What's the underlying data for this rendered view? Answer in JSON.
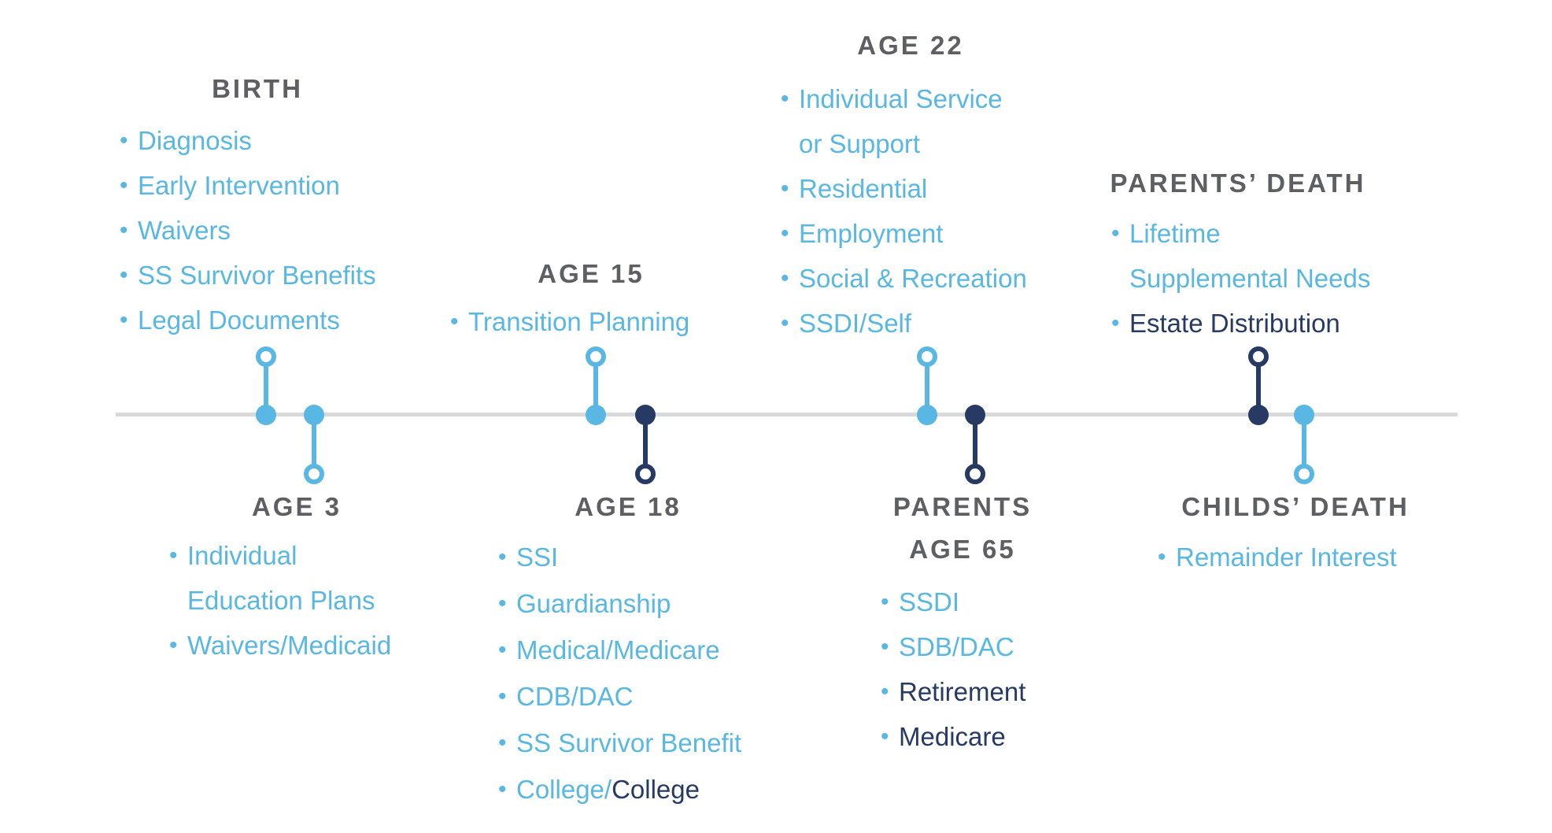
{
  "page": {
    "background": "#ffffff"
  },
  "colors": {
    "blue": "#59B7E3",
    "navy": "#263A64",
    "heading_gray": "#5D5F62",
    "axis_gray": "#D8D9DA"
  },
  "icons": {
    "list_bullet": "•"
  },
  "timeline": {
    "axis_name": "life-stages-timeline",
    "events": [
      {
        "id": "birth",
        "title_lines": [
          "BIRTH"
        ],
        "side": "above",
        "marker_color": "blue",
        "items": [
          {
            "bullet": true,
            "segments": [
              {
                "text": "Diagnosis",
                "color": "blue"
              }
            ]
          },
          {
            "bullet": true,
            "segments": [
              {
                "text": "Early Intervention",
                "color": "blue"
              }
            ]
          },
          {
            "bullet": true,
            "segments": [
              {
                "text": "Waivers",
                "color": "blue"
              }
            ]
          },
          {
            "bullet": true,
            "segments": [
              {
                "text": "SS Survivor Benefits",
                "color": "blue"
              }
            ]
          },
          {
            "bullet": true,
            "segments": [
              {
                "text": "Legal Documents",
                "color": "blue"
              }
            ]
          }
        ]
      },
      {
        "id": "age3",
        "title_lines": [
          "AGE 3"
        ],
        "side": "below",
        "marker_color": "blue",
        "items": [
          {
            "bullet": true,
            "segments": [
              {
                "text": "Individual",
                "color": "blue"
              }
            ]
          },
          {
            "bullet": false,
            "segments": [
              {
                "text": "Education Plans",
                "color": "blue"
              }
            ]
          },
          {
            "bullet": true,
            "segments": [
              {
                "text": "Waivers/Medicaid",
                "color": "blue"
              }
            ]
          }
        ]
      },
      {
        "id": "age15",
        "title_lines": [
          "AGE 15"
        ],
        "side": "above",
        "marker_color": "blue",
        "items": [
          {
            "bullet": true,
            "segments": [
              {
                "text": "Transition Planning",
                "color": "blue"
              }
            ]
          }
        ]
      },
      {
        "id": "age18",
        "title_lines": [
          "AGE 18"
        ],
        "side": "below",
        "marker_color": "navy",
        "items": [
          {
            "bullet": true,
            "segments": [
              {
                "text": "SSI",
                "color": "blue"
              }
            ]
          },
          {
            "bullet": true,
            "segments": [
              {
                "text": "Guardianship",
                "color": "blue"
              }
            ]
          },
          {
            "bullet": true,
            "segments": [
              {
                "text": "Medical/Medicare",
                "color": "blue"
              }
            ]
          },
          {
            "bullet": true,
            "segments": [
              {
                "text": "CDB/DAC",
                "color": "blue"
              }
            ]
          },
          {
            "bullet": true,
            "segments": [
              {
                "text": "SS Survivor Benefit",
                "color": "blue"
              }
            ]
          },
          {
            "bullet": true,
            "segments": [
              {
                "text": "College/",
                "color": "blue"
              },
              {
                "text": "College",
                "color": "navy"
              }
            ]
          }
        ]
      },
      {
        "id": "age22",
        "title_lines": [
          "AGE 22"
        ],
        "side": "above",
        "marker_color": "blue",
        "items": [
          {
            "bullet": true,
            "segments": [
              {
                "text": "Individual Service",
                "color": "blue"
              }
            ]
          },
          {
            "bullet": false,
            "segments": [
              {
                "text": "or Support",
                "color": "blue"
              }
            ]
          },
          {
            "bullet": true,
            "segments": [
              {
                "text": "Residential",
                "color": "blue"
              }
            ]
          },
          {
            "bullet": true,
            "segments": [
              {
                "text": "Employment",
                "color": "blue"
              }
            ]
          },
          {
            "bullet": true,
            "segments": [
              {
                "text": "Social & Recreation",
                "color": "blue"
              }
            ]
          },
          {
            "bullet": true,
            "segments": [
              {
                "text": "SSDI/Self",
                "color": "blue"
              }
            ]
          }
        ]
      },
      {
        "id": "parents65",
        "title_lines": [
          "PARENTS",
          "AGE 65"
        ],
        "side": "below",
        "marker_color": "navy",
        "items": [
          {
            "bullet": true,
            "segments": [
              {
                "text": "SSDI",
                "color": "blue"
              }
            ]
          },
          {
            "bullet": true,
            "segments": [
              {
                "text": "SDB/DAC",
                "color": "blue"
              }
            ]
          },
          {
            "bullet": true,
            "segments": [
              {
                "text": "Retirement",
                "color": "navy"
              }
            ]
          },
          {
            "bullet": true,
            "segments": [
              {
                "text": "Medicare",
                "color": "navy"
              }
            ]
          }
        ]
      },
      {
        "id": "parentsdeath",
        "title_lines": [
          "PARENTS’ DEATH"
        ],
        "side": "above",
        "marker_color": "navy",
        "items": [
          {
            "bullet": true,
            "segments": [
              {
                "text": "Lifetime",
                "color": "blue"
              }
            ]
          },
          {
            "bullet": false,
            "segments": [
              {
                "text": "Supplemental Needs",
                "color": "blue"
              }
            ]
          },
          {
            "bullet": true,
            "segments": [
              {
                "text": "Estate Distribution",
                "color": "navy"
              }
            ]
          }
        ]
      },
      {
        "id": "childsdeath",
        "title_lines": [
          "CHILDS’ DEATH"
        ],
        "side": "below",
        "marker_color": "blue",
        "items": [
          {
            "bullet": true,
            "segments": [
              {
                "text": "Remainder Interest",
                "color": "blue"
              }
            ]
          }
        ]
      }
    ]
  }
}
